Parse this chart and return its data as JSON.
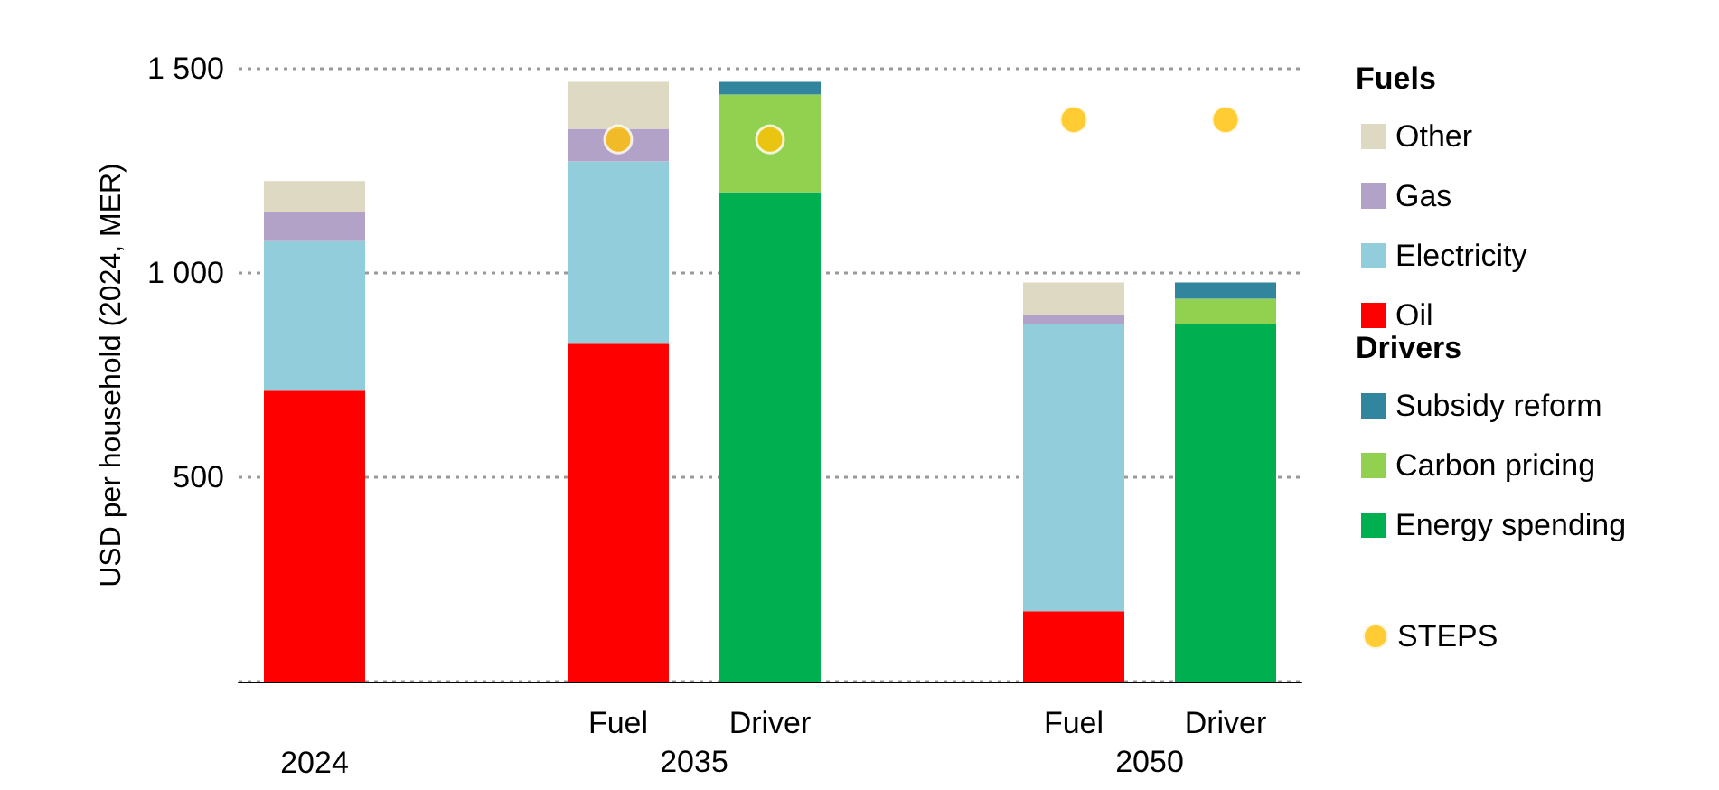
{
  "chart_data": {
    "type": "bar",
    "stacked": true,
    "ylabel": "USD per household (2024, MER)",
    "categories": [
      "2024",
      null,
      "Fuel",
      "Driver",
      null,
      "Fuel",
      "Driver"
    ],
    "series": [
      {
        "name": "Oil",
        "color": "#ff0000",
        "values": [
          712,
          null,
          827,
          null,
          null,
          172,
          null
        ]
      },
      {
        "name": "Electricity",
        "color": "#92cddc",
        "values": [
          366,
          null,
          446,
          null,
          null,
          703,
          null
        ]
      },
      {
        "name": "Gas",
        "color": "#b3a2c7",
        "values": [
          72,
          null,
          80,
          null,
          null,
          22,
          null
        ]
      },
      {
        "name": "Other",
        "color": "#ddd9c3",
        "values": [
          75,
          null,
          115,
          null,
          null,
          80,
          null
        ]
      },
      {
        "name": "Energy spending",
        "color": "#00b050",
        "values": [
          null,
          null,
          null,
          1198,
          null,
          null,
          875
        ]
      },
      {
        "name": "Carbon pricing",
        "color": "#92d050",
        "values": [
          null,
          null,
          null,
          239,
          null,
          null,
          62
        ]
      },
      {
        "name": "Subsidy reform",
        "color": "#31859c",
        "values": [
          null,
          null,
          null,
          31,
          null,
          null,
          40
        ]
      },
      {
        "name": "STEPS",
        "type": "scatter",
        "color": "#ffc000",
        "values": [
          null,
          null,
          1327,
          1327,
          null,
          1375,
          1375
        ]
      }
    ],
    "ylim": [
      0,
      1500
    ],
    "yticks": [
      {
        "value": 0,
        "label": null
      },
      500,
      {
        "value": 1000,
        "label": "1 000"
      },
      {
        "value": 1500,
        "label": "1 500"
      }
    ],
    "grid": "y",
    "legend": "right",
    "legend_title": "Fuels",
    "marker": "circle",
    "annotations": [
      "Drivers",
      "2035",
      "2050"
    ]
  }
}
